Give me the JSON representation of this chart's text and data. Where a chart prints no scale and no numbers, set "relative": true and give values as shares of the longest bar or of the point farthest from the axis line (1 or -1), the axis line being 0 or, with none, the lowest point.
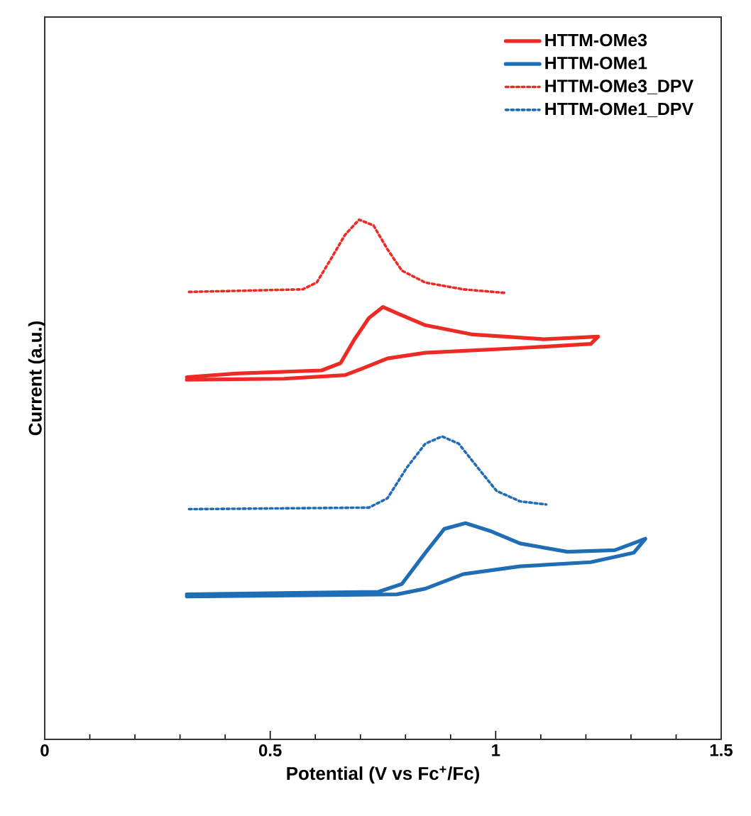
{
  "chart_data": {
    "type": "line",
    "relative": true,
    "xlabel": "Potential (V vs Fc$^{+}$/Fc)",
    "ylabel": "Current (a.u.)",
    "xlim": [
      0,
      1.5
    ],
    "xticks": [
      0,
      0.5,
      1,
      1.5
    ],
    "tick_labels": "x",
    "legend": "top right",
    "marker": "none",
    "series": [
      {
        "name": "HTTM-OMe3",
        "color": "#ee2a24",
        "line_style": "solid",
        "x": [
          0.315,
          0.425,
          0.614,
          0.656,
          0.687,
          0.719,
          0.75,
          0.781,
          0.844,
          0.949,
          1.106,
          1.227,
          1.211,
          1.054,
          0.844,
          0.76,
          0.708,
          0.666,
          0.53,
          0.315
        ],
        "values": [
          0.697,
          0.704,
          0.71,
          0.724,
          0.77,
          0.811,
          0.832,
          0.82,
          0.797,
          0.779,
          0.77,
          0.775,
          0.761,
          0.753,
          0.744,
          0.733,
          0.715,
          0.701,
          0.694,
          0.692
        ]
      },
      {
        "name": "HTTM-OMe1",
        "color": "#1f6db5",
        "line_style": "solid",
        "x": [
          0.315,
          0.74,
          0.792,
          0.844,
          0.886,
          0.933,
          0.991,
          1.054,
          1.159,
          1.264,
          1.332,
          1.306,
          1.211,
          1.054,
          0.928,
          0.844,
          0.781,
          0.315
        ],
        "values": [
          0.279,
          0.284,
          0.299,
          0.359,
          0.405,
          0.416,
          0.4,
          0.377,
          0.361,
          0.364,
          0.386,
          0.359,
          0.341,
          0.333,
          0.318,
          0.29,
          0.279,
          0.275
        ]
      },
      {
        "name": "HTTM-OMe3_DPV",
        "color": "#ee2a24",
        "line_style": "dotted",
        "x": [
          0.32,
          0.572,
          0.603,
          0.635,
          0.666,
          0.697,
          0.729,
          0.76,
          0.792,
          0.844,
          0.928,
          1.023
        ],
        "values": [
          0.861,
          0.866,
          0.879,
          0.925,
          0.971,
          1.0,
          0.989,
          0.943,
          0.902,
          0.879,
          0.866,
          0.859
        ]
      },
      {
        "name": "HTTM-OMe1_DPV",
        "color": "#1f6db5",
        "line_style": "dotted",
        "x": [
          0.32,
          0.719,
          0.76,
          0.803,
          0.844,
          0.881,
          0.918,
          0.96,
          1.002,
          1.054,
          1.112
        ],
        "values": [
          0.443,
          0.446,
          0.464,
          0.523,
          0.569,
          0.583,
          0.569,
          0.523,
          0.478,
          0.458,
          0.452
        ]
      }
    ]
  }
}
